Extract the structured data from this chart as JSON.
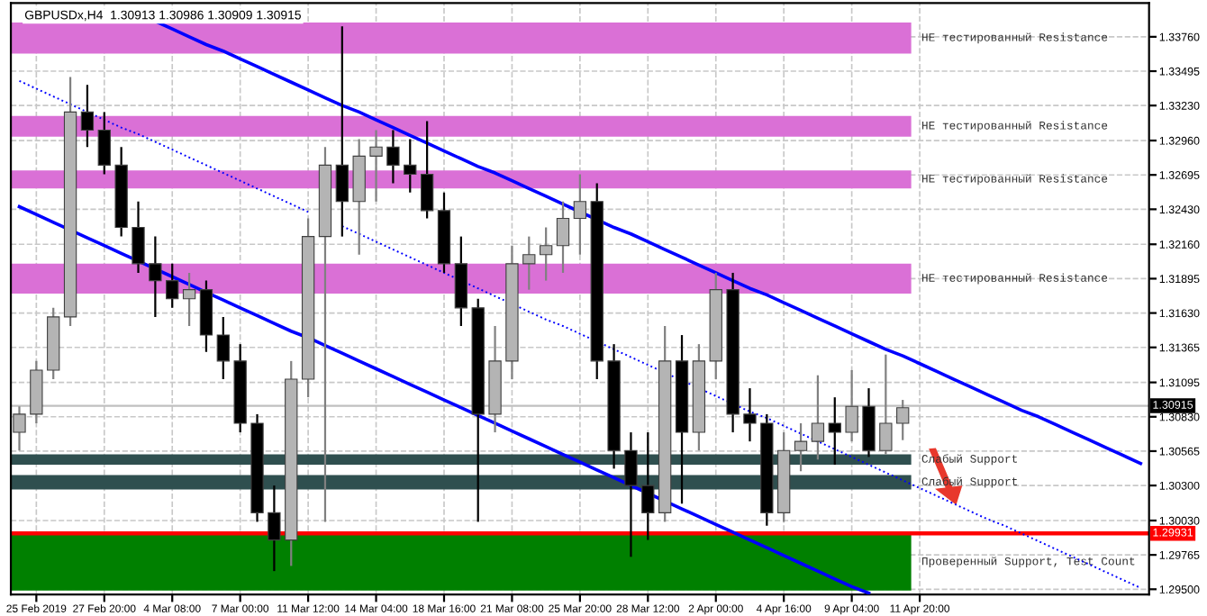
{
  "chart_data": {
    "type": "candlestick",
    "title": "GBPUSDx,H4  1.30913 1.30986 1.30909 1.30915",
    "categories": [
      null,
      "25 Feb 2019",
      null,
      null,
      null,
      "27 Feb 20:00",
      null,
      null,
      null,
      "4 Mar 08:00",
      null,
      null,
      null,
      "7 Mar 00:00",
      null,
      null,
      null,
      "11 Mar 12:00",
      null,
      null,
      null,
      "14 Mar 04:00",
      null,
      null,
      null,
      "18 Mar 16:00",
      null,
      null,
      null,
      "21 Mar 08:00",
      null,
      null,
      null,
      "25 Mar 20:00",
      null,
      null,
      null,
      "28 Mar 12:00",
      null,
      null,
      null,
      "2 Apr 00:00",
      null,
      null,
      null,
      "4 Apr 16:00",
      null,
      null,
      null,
      "9 Apr 04:00",
      null,
      null,
      null,
      "11 Apr 20:00",
      null,
      null,
      null,
      null,
      null,
      null,
      null,
      null,
      null,
      null,
      null,
      null,
      null
    ],
    "ohlc": [
      [
        1.3071,
        1.3091,
        1.3057,
        1.3085
      ],
      [
        1.3085,
        1.3126,
        1.3078,
        1.3119
      ],
      [
        1.3119,
        1.3167,
        1.3112,
        1.316
      ],
      [
        1.316,
        1.3345,
        1.3153,
        1.3318
      ],
      [
        1.3318,
        1.3339,
        1.3291,
        1.3304
      ],
      [
        1.3304,
        1.3318,
        1.327,
        1.3277
      ],
      [
        1.3277,
        1.3291,
        1.3222,
        1.3229
      ],
      [
        1.3229,
        1.3249,
        1.3194,
        1.3201
      ],
      [
        1.3201,
        1.3222,
        1.316,
        1.3188
      ],
      [
        1.3188,
        1.3201,
        1.3167,
        1.3174
      ],
      [
        1.3174,
        1.3194,
        1.3153,
        1.3181
      ],
      [
        1.3181,
        1.3188,
        1.3133,
        1.3146
      ],
      [
        1.3146,
        1.316,
        1.3112,
        1.3126
      ],
      [
        1.3126,
        1.3139,
        1.3071,
        1.3078
      ],
      [
        1.3078,
        1.3085,
        1.3002,
        1.3009
      ],
      [
        1.3009,
        1.303,
        1.2964,
        1.2988
      ],
      [
        1.2988,
        1.3126,
        1.2968,
        1.3112
      ],
      [
        1.3112,
        1.3236,
        1.3098,
        1.3222
      ],
      [
        1.3222,
        1.3291,
        1.3002,
        1.3277
      ],
      [
        1.3277,
        1.3384,
        1.3222,
        1.3249
      ],
      [
        1.3249,
        1.3297,
        1.3208,
        1.3284
      ],
      [
        1.3284,
        1.3304,
        1.3249,
        1.3291
      ],
      [
        1.3291,
        1.3304,
        1.3263,
        1.3277
      ],
      [
        1.3277,
        1.3297,
        1.3256,
        1.327
      ],
      [
        1.327,
        1.3311,
        1.3236,
        1.3242
      ],
      [
        1.3242,
        1.3256,
        1.3194,
        1.3201
      ],
      [
        1.3201,
        1.3222,
        1.3153,
        1.3167
      ],
      [
        1.3167,
        1.3174,
        1.3002,
        1.3085
      ],
      [
        1.3085,
        1.3153,
        1.3071,
        1.3126
      ],
      [
        1.3126,
        1.3215,
        1.3112,
        1.3201
      ],
      [
        1.3201,
        1.3222,
        1.3181,
        1.3208
      ],
      [
        1.3208,
        1.3229,
        1.3188,
        1.3215
      ],
      [
        1.3215,
        1.3249,
        1.3194,
        1.3236
      ],
      [
        1.3236,
        1.327,
        1.3208,
        1.3249
      ],
      [
        1.3249,
        1.3263,
        1.3112,
        1.3126
      ],
      [
        1.3126,
        1.3139,
        1.3043,
        1.3057
      ],
      [
        1.3057,
        1.3071,
        1.2975,
        1.303
      ],
      [
        1.303,
        1.3071,
        1.2988,
        1.3009
      ],
      [
        1.3009,
        1.3153,
        1.3002,
        1.3126
      ],
      [
        1.3126,
        1.3146,
        1.3016,
        1.3071
      ],
      [
        1.3071,
        1.3139,
        1.3057,
        1.3126
      ],
      [
        1.3126,
        1.3194,
        1.3112,
        1.3181
      ],
      [
        1.3181,
        1.3194,
        1.3071,
        1.3085
      ],
      [
        1.3085,
        1.3105,
        1.3064,
        1.3078
      ],
      [
        1.3078,
        1.3085,
        1.2999,
        1.3009
      ],
      [
        1.3009,
        1.3071,
        1.3002,
        1.3057
      ],
      [
        1.3057,
        1.3078,
        1.3041,
        1.3064
      ],
      [
        1.3064,
        1.3115,
        1.305,
        1.3078
      ],
      [
        1.3078,
        1.3098,
        1.3046,
        1.3071
      ],
      [
        1.3071,
        1.3119,
        1.3064,
        1.3091
      ],
      [
        1.3091,
        1.3105,
        1.3052,
        1.3057
      ],
      [
        1.3057,
        1.3131,
        1.3054,
        1.3078
      ],
      [
        1.3078,
        1.3096,
        1.3065,
        1.309
      ],
      null,
      null,
      null,
      null,
      null,
      null,
      null,
      null,
      null,
      null,
      null,
      null,
      null,
      null
    ],
    "series": [
      {
        "type": "line",
        "color": "#0000ff",
        "line_style": "solid",
        "values": [
          null,
          null,
          null,
          null,
          null,
          null,
          null,
          null,
          1.3388,
          1.3382,
          1.3376,
          1.337,
          1.3365,
          1.3359,
          1.3353,
          1.3347,
          1.3341,
          1.3335,
          1.3329,
          1.3323,
          1.3318,
          1.3312,
          1.3306,
          1.33,
          1.3294,
          1.3288,
          1.3282,
          1.3276,
          1.3271,
          1.3265,
          1.3259,
          1.3253,
          1.3247,
          1.3241,
          1.3235,
          1.3229,
          1.3224,
          1.3218,
          1.3212,
          1.3206,
          1.32,
          1.3194,
          1.3188,
          1.3182,
          1.3177,
          1.3171,
          1.3165,
          1.3159,
          1.3153,
          1.3147,
          1.3141,
          1.3135,
          1.313,
          1.3124,
          1.3118,
          1.3112,
          1.3106,
          1.31,
          1.3094,
          1.3088,
          1.3083,
          1.3077,
          1.3071,
          1.3065,
          1.3059,
          1.3053,
          1.3047
        ]
      },
      {
        "type": "line",
        "color": "#0000ff",
        "line_style": "dotted",
        "values": [
          1.3342,
          1.3336,
          1.333,
          1.3324,
          1.3318,
          1.3312,
          1.3306,
          1.3301,
          1.3295,
          1.3289,
          1.3283,
          1.3277,
          1.3271,
          1.3265,
          1.3259,
          1.3253,
          1.3247,
          1.3241,
          null,
          1.323,
          1.3224,
          1.3218,
          1.3212,
          1.3206,
          1.32,
          1.3194,
          1.3188,
          1.3182,
          1.3176,
          1.317,
          1.3164,
          1.3158,
          1.3153,
          1.3147,
          1.3141,
          1.3135,
          1.3129,
          1.3123,
          1.3117,
          1.3111,
          1.3105,
          1.3099,
          1.3093,
          1.3087,
          1.3082,
          1.3076,
          1.307,
          1.3064,
          1.3058,
          1.3052,
          1.3046,
          1.304,
          1.3034,
          1.3028,
          1.3022,
          1.3016,
          1.301,
          1.3004,
          1.2999,
          1.2993,
          1.2987,
          1.2981,
          1.2975,
          1.2969,
          1.2963,
          1.2957,
          1.2951
        ]
      },
      {
        "type": "line",
        "color": "#0000ff",
        "line_style": "solid",
        "values": [
          1.3245,
          1.3239,
          1.3233,
          1.3227,
          1.3221,
          1.3215,
          1.3209,
          1.3203,
          1.3197,
          1.3191,
          1.3185,
          1.3179,
          1.3173,
          1.3167,
          1.3161,
          1.3155,
          1.3149,
          1.3144,
          1.3138,
          1.3132,
          1.3126,
          1.312,
          1.3114,
          1.3108,
          1.3102,
          1.3096,
          1.309,
          1.3084,
          1.3078,
          1.3072,
          1.3066,
          1.306,
          1.3054,
          1.3048,
          1.3042,
          1.3036,
          1.303,
          1.3024,
          1.3018,
          1.3012,
          1.3006,
          1.3,
          1.2994,
          1.2988,
          1.2982,
          1.2976,
          1.297,
          1.2964,
          1.2958,
          1.2952,
          1.2947,
          null,
          null,
          null,
          null,
          null,
          null,
          null,
          null,
          null,
          null,
          null,
          null,
          null,
          null,
          null,
          null
        ]
      }
    ],
    "bands": [
      {
        "axis": "y",
        "from": 1.3363,
        "to": 1.3387,
        "label": "НЕ тестированный Resistance",
        "color": "#da70d6"
      },
      {
        "axis": "y",
        "from": 1.3299,
        "to": 1.3315,
        "label": "НЕ тестированный Resistance",
        "color": "#da70d6"
      },
      {
        "axis": "y",
        "from": 1.3259,
        "to": 1.3273,
        "label": "НЕ тестированный Resistance",
        "color": "#da70d6"
      },
      {
        "axis": "y",
        "from": 1.3178,
        "to": 1.3201,
        "label": "НЕ тестированный Resistance",
        "color": "#da70d6"
      },
      {
        "axis": "y",
        "from": 1.3046,
        "to": 1.3054,
        "label": "Слабый Support",
        "color": "#2f4f4f"
      },
      {
        "axis": "y",
        "from": 1.3027,
        "to": 1.3038,
        "label": "Слабый Support",
        "color": "#2f4f4f"
      },
      {
        "axis": "y",
        "from": 1.2949,
        "to": 1.2993,
        "label": "Проверенный Support, Test Count",
        "color": "#008000"
      }
    ],
    "ref_lines": [
      {
        "axis": "y",
        "value": 1.29931,
        "label": "1.29931",
        "color": "#ff0000",
        "line_style": "solid"
      },
      {
        "axis": "y",
        "value": 1.30915,
        "label": "1.30915",
        "color": "#c0c0c0",
        "line_style": "solid"
      }
    ],
    "ylim": [
      1.2946,
      1.3402
    ],
    "yticks": [
      {
        "value": 1.295,
        "label": "1.29500"
      },
      1.29765,
      {
        "value": 1.3003,
        "label": "1.30030"
      },
      {
        "value": 1.303,
        "label": "1.30300"
      },
      1.30565,
      {
        "value": 1.3083,
        "label": "1.30830"
      },
      1.31095,
      1.31365,
      {
        "value": 1.3163,
        "label": "1.31630"
      },
      1.31895,
      {
        "value": 1.3216,
        "label": "1.32160"
      },
      {
        "value": 1.3243,
        "label": "1.32430"
      },
      1.32695,
      {
        "value": 1.3296,
        "label": "1.32960"
      },
      {
        "value": 1.3323,
        "label": "1.33230"
      },
      1.33495,
      {
        "value": 1.3376,
        "label": "1.33760"
      }
    ],
    "grid": true
  }
}
